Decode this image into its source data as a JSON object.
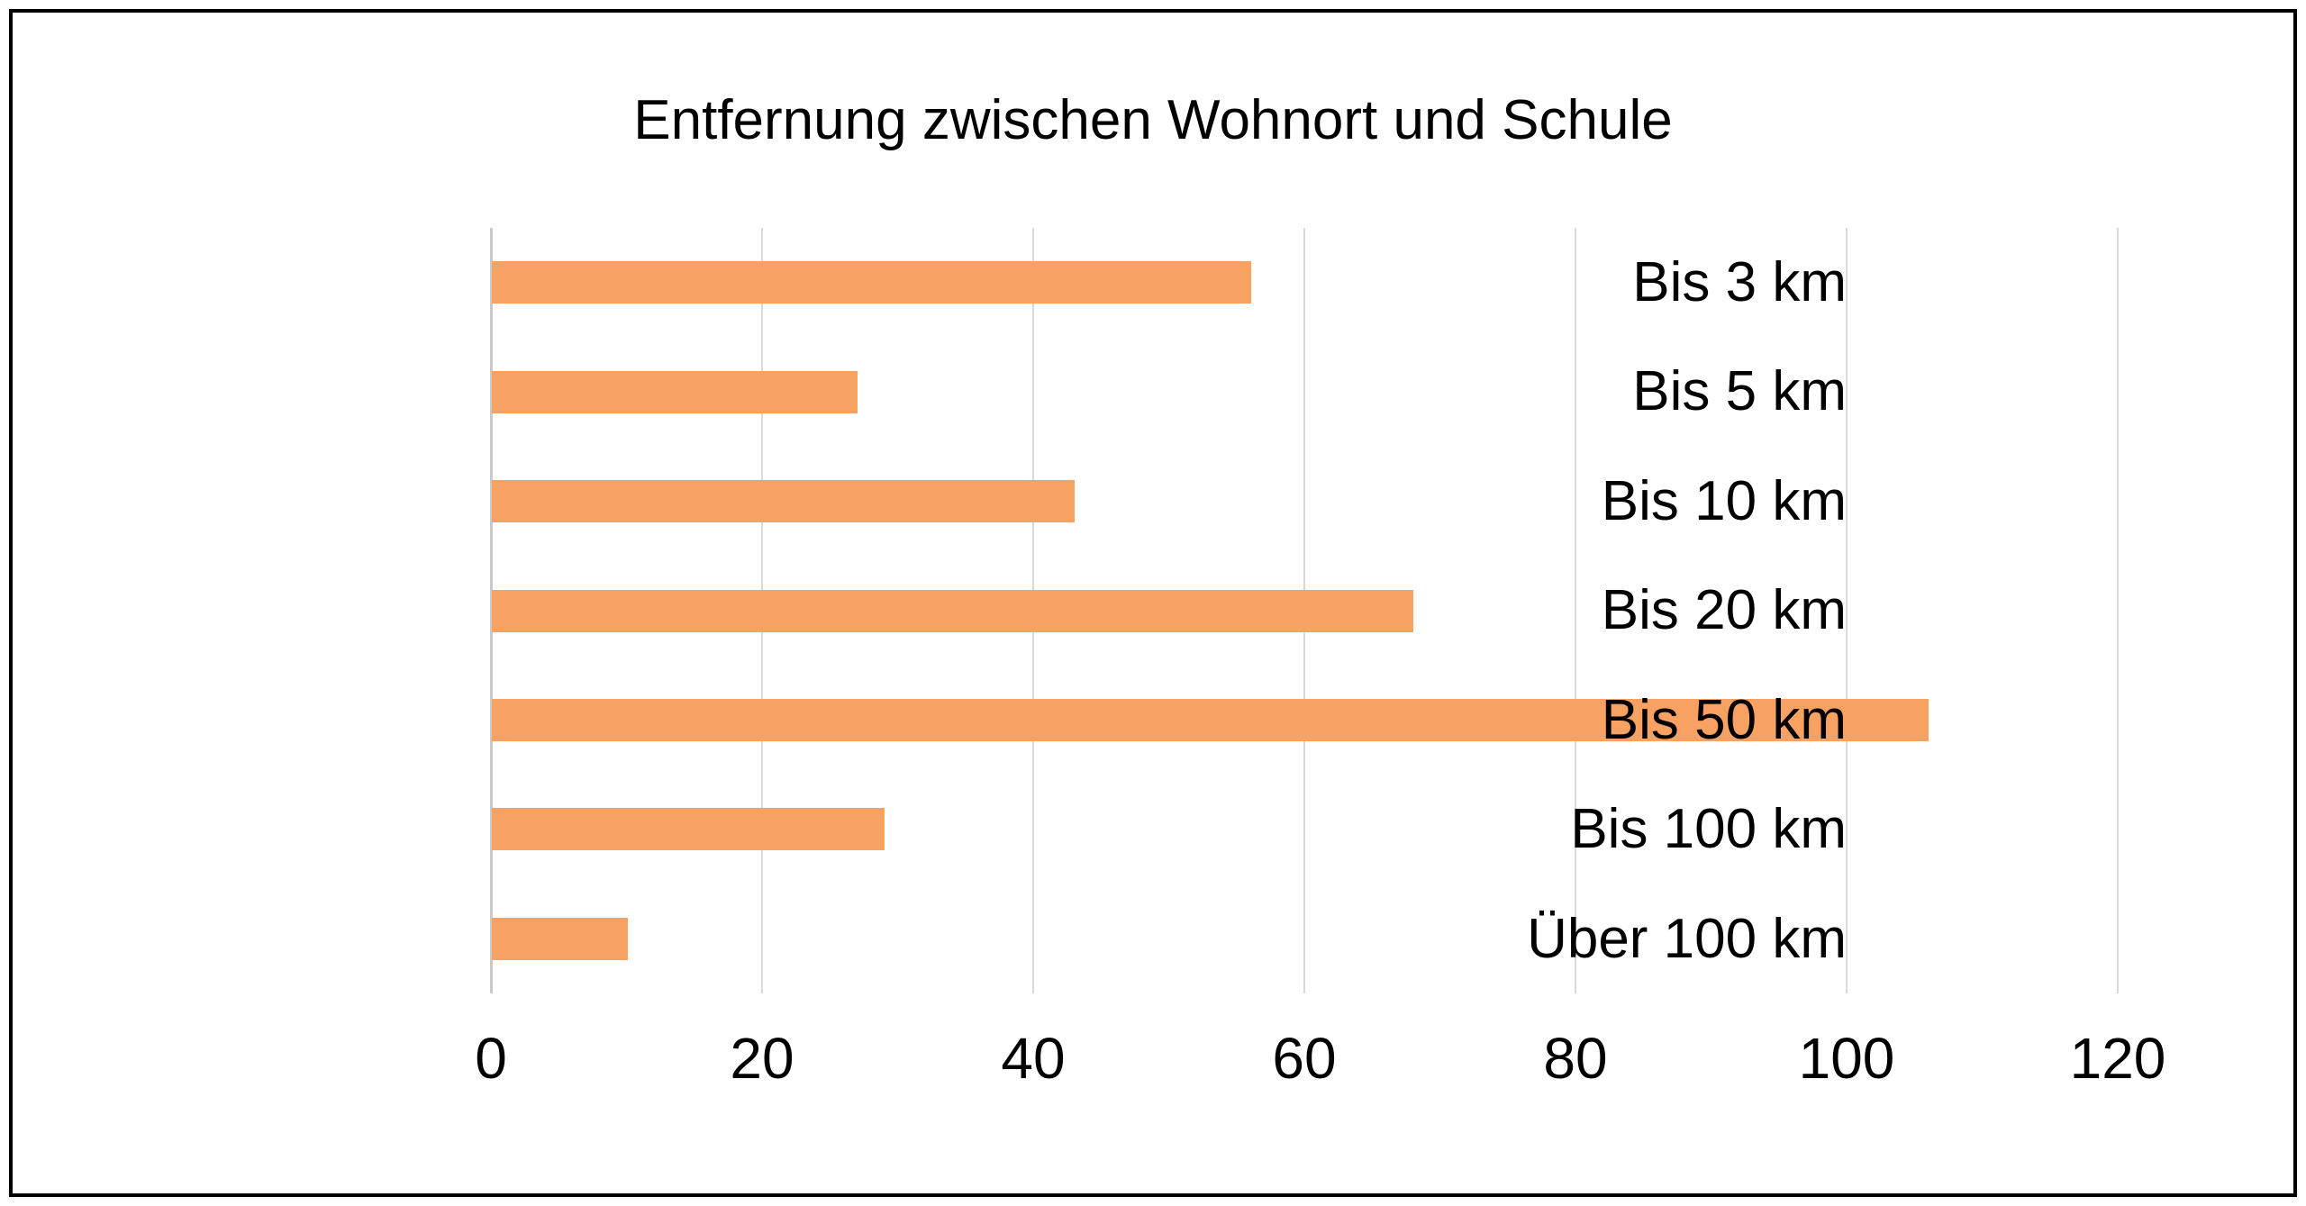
{
  "chart": {
    "title": "Entfernung zwischen Wohnort und Schule"
  },
  "chart_data": {
    "type": "bar",
    "orientation": "horizontal",
    "title": "Entfernung zwischen Wohnort und Schule",
    "categories": [
      "Bis 3 km",
      "Bis 5 km",
      "Bis 10 km",
      "Bis 20 km",
      "Bis 50 km",
      "Bis 100 km",
      "Über 100 km"
    ],
    "values": [
      56,
      27,
      43,
      68,
      106,
      29,
      10
    ],
    "xlabel": "",
    "ylabel": "",
    "xlim": [
      0,
      120
    ],
    "xticks": [
      0,
      20,
      40,
      60,
      80,
      100,
      120
    ],
    "grid": true,
    "legend": false,
    "colors": {
      "bar_fill": "#F7A262",
      "gridline": "#D9D9D9",
      "axis_line": "#C9C9C9",
      "text": "#000000",
      "frame_border": "#000000",
      "background": "#FFFFFF"
    }
  }
}
